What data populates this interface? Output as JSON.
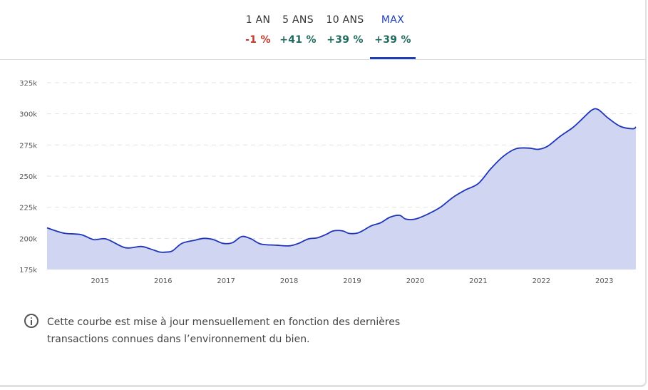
{
  "tabs": [
    {
      "label": "1 AN",
      "change": "-1 %",
      "color": "#c0392b"
    },
    {
      "label": "5 ANS",
      "change": "+41 %",
      "color": "#1f6b5e"
    },
    {
      "label": "10 ANS",
      "change": "+39 %",
      "color": "#1f6b5e"
    },
    {
      "label": "MAX",
      "change": "+39 %",
      "color": "#1f6b5e",
      "active": true
    }
  ],
  "note": {
    "icon": "info-icon",
    "text": "Cette courbe est mise à jour mensuellement en fonction des dernières transactions connues dans l’environnement du bien."
  },
  "chart_data": {
    "type": "area",
    "line_color": "#1f35b8",
    "fill_color": "#d0d5f2",
    "grid": true,
    "y_ticks": [
      "175k",
      "200k",
      "225k",
      "250k",
      "275k",
      "300k",
      "325k"
    ],
    "y_tick_values": [
      175000,
      200000,
      225000,
      250000,
      275000,
      300000,
      325000
    ],
    "ylim": [
      175000,
      325000
    ],
    "x_ticks": [
      "2015",
      "2016",
      "2017",
      "2018",
      "2019",
      "2020",
      "2021",
      "2022",
      "2023"
    ],
    "x_tick_values": [
      2015,
      2016,
      2017,
      2018,
      2019,
      2020,
      2021,
      2022,
      2023
    ],
    "xlim": [
      2014.16,
      2023.5
    ],
    "series": [
      {
        "x": [
          2014.16,
          2014.3,
          2014.45,
          2014.7,
          2014.9,
          2015.1,
          2015.4,
          2015.65,
          2015.8,
          2015.95,
          2016.05,
          2016.15,
          2016.3,
          2016.5,
          2016.65,
          2016.8,
          2016.95,
          2017.1,
          2017.25,
          2017.4,
          2017.55,
          2017.8,
          2018.0,
          2018.15,
          2018.3,
          2018.45,
          2018.6,
          2018.7,
          2018.85,
          2018.95,
          2019.1,
          2019.3,
          2019.45,
          2019.6,
          2019.75,
          2019.85,
          2020.0,
          2020.2,
          2020.4,
          2020.6,
          2020.8,
          2021.0,
          2021.2,
          2021.4,
          2021.6,
          2021.8,
          2021.95,
          2022.1,
          2022.3,
          2022.5,
          2022.65,
          2022.8,
          2022.9,
          2023.05,
          2023.25,
          2023.45,
          2023.5
        ],
        "y": [
          208500,
          206000,
          204000,
          203000,
          199000,
          199500,
          192500,
          193500,
          191500,
          189000,
          189000,
          190000,
          196000,
          198500,
          200000,
          199000,
          196000,
          196500,
          201500,
          199500,
          195500,
          194500,
          194000,
          196000,
          199500,
          200500,
          203500,
          206000,
          206000,
          204000,
          204500,
          210000,
          212500,
          217000,
          218500,
          215500,
          215500,
          219500,
          225000,
          233000,
          239000,
          244000,
          256000,
          266000,
          272000,
          272500,
          271500,
          274000,
          282000,
          289000,
          296000,
          303000,
          303500,
          297000,
          290000,
          288000,
          289500
        ]
      }
    ]
  }
}
